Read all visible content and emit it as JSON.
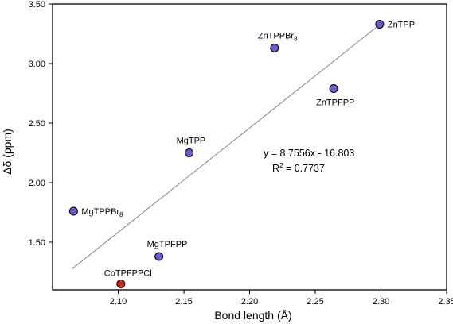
{
  "chart_data": {
    "type": "scatter",
    "xlabel": "Bond length (Å)",
    "ylabel": "Δδ (ppm)",
    "xlim": [
      2.05,
      2.35
    ],
    "ylim": [
      1.1,
      3.5
    ],
    "xticks": [
      "2.10",
      "2.15",
      "2.20",
      "2.25",
      "2.30",
      "2.35"
    ],
    "yticks": [
      "1.50",
      "2.00",
      "2.50",
      "3.00",
      "3.50"
    ],
    "points": [
      {
        "name": "ZnTPP",
        "sub": "",
        "x": 2.299,
        "y": 3.33,
        "color": "#6a5acd"
      },
      {
        "name": "ZnTPPBr",
        "sub": "8",
        "x": 2.219,
        "y": 3.13,
        "color": "#6a5acd"
      },
      {
        "name": "ZnTPFPP",
        "sub": "",
        "x": 2.264,
        "y": 2.79,
        "color": "#6a5acd"
      },
      {
        "name": "MgTPP",
        "sub": "",
        "x": 2.154,
        "y": 2.25,
        "color": "#6a5acd"
      },
      {
        "name": "MgTPPBr",
        "sub": "8",
        "x": 2.066,
        "y": 1.76,
        "color": "#6a5acd"
      },
      {
        "name": "MgTPFPP",
        "sub": "",
        "x": 2.131,
        "y": 1.38,
        "color": "#6a5acd"
      },
      {
        "name": "CoTPFPPCl",
        "sub": "",
        "x": 2.102,
        "y": 1.15,
        "color": "#cc2a1a"
      }
    ],
    "fit": {
      "slope": 8.7556,
      "intercept": -16.803,
      "x_range": [
        2.065,
        2.299
      ]
    },
    "equation": "y = 8.7556x - 16.803",
    "r2_prefix": "R",
    "r2_sup": "2",
    "r2_suffix": " = 0.7737",
    "grid": false,
    "legend": "none",
    "colors": {
      "point": "#6a5acd",
      "highlight": "#cc2a1a",
      "fit_line": "#8c9a94"
    }
  }
}
